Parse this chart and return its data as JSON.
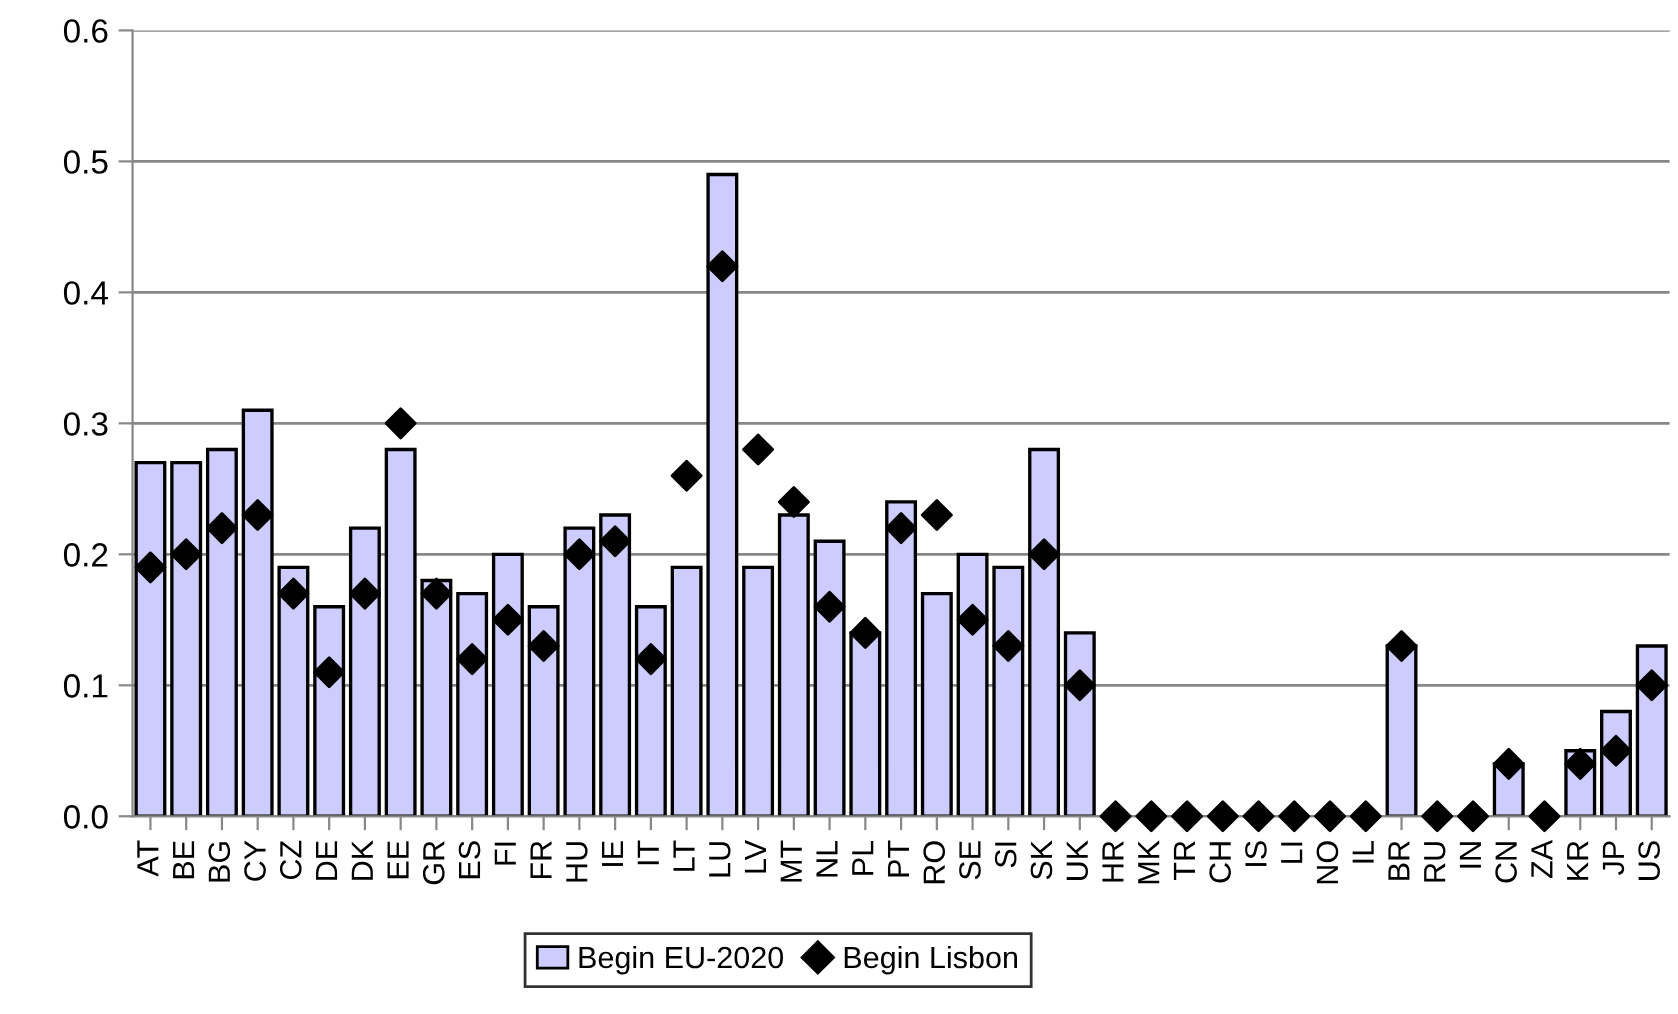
{
  "chart_data": {
    "type": "bar",
    "categories": [
      "AT",
      "BE",
      "BG",
      "CY",
      "CZ",
      "DE",
      "DK",
      "EE",
      "GR",
      "ES",
      "FI",
      "FR",
      "HU",
      "IE",
      "IT",
      "LT",
      "LU",
      "LV",
      "MT",
      "NL",
      "PL",
      "PT",
      "RO",
      "SE",
      "SI",
      "SK",
      "UK",
      "HR",
      "MK",
      "TR",
      "CH",
      "IS",
      "LI",
      "NO",
      "IL",
      "BR",
      "RU",
      "IN",
      "CN",
      "ZA",
      "KR",
      "JP",
      "US"
    ],
    "series": [
      {
        "name": "Begin EU-2020",
        "color": "#ccccff",
        "values": [
          0.27,
          0.27,
          0.28,
          0.31,
          0.19,
          0.16,
          0.22,
          0.28,
          0.18,
          0.17,
          0.2,
          0.16,
          0.22,
          0.23,
          0.16,
          0.19,
          0.49,
          0.19,
          0.23,
          0.21,
          0.14,
          0.24,
          0.17,
          0.2,
          0.19,
          0.28,
          0.14,
          null,
          null,
          null,
          null,
          null,
          null,
          null,
          null,
          0.13,
          null,
          null,
          0.04,
          null,
          0.05,
          0.08,
          0.13
        ]
      },
      {
        "name": "Begin Lisbon",
        "type": "scatter",
        "color": "#000000",
        "marker": "diamond",
        "values": [
          0.19,
          0.2,
          0.22,
          0.23,
          0.17,
          0.11,
          0.17,
          0.3,
          0.17,
          0.12,
          0.15,
          0.13,
          0.2,
          0.21,
          0.12,
          0.26,
          0.42,
          0.28,
          0.24,
          0.16,
          0.14,
          0.22,
          0.23,
          0.15,
          0.13,
          0.2,
          0.1,
          0,
          0,
          0,
          0,
          0,
          0,
          0,
          0,
          0.13,
          0,
          0,
          0.04,
          0,
          0.04,
          0.05,
          0.1
        ]
      }
    ],
    "ylim": [
      0,
      0.6
    ],
    "yticks": [
      {
        "value": 0,
        "label": "0.0"
      },
      {
        "value": 0.1,
        "label": "0.1"
      },
      {
        "value": 0.2,
        "label": "0.2"
      },
      {
        "value": 0.3,
        "label": "0.3"
      },
      {
        "value": 0.4,
        "label": "0.4"
      },
      {
        "value": 0.5,
        "label": "0.5"
      },
      {
        "value": 0.6,
        "label": "0.6"
      }
    ],
    "grid": "y",
    "legend": "bottom"
  }
}
